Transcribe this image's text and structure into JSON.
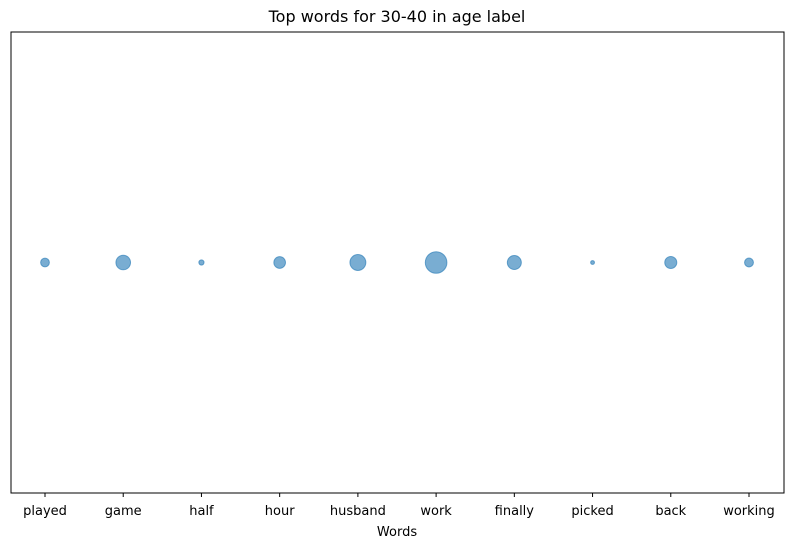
{
  "chart_data": {
    "type": "scatter",
    "title": "Top words for 30-40 in age label",
    "xlabel": "Words",
    "ylabel": "",
    "categories": [
      "played",
      "game",
      "half",
      "hour",
      "husband",
      "work",
      "finally",
      "picked",
      "back",
      "working"
    ],
    "values": [
      31,
      87,
      11,
      55,
      103,
      190,
      80,
      6,
      59,
      32
    ],
    "y_axis_shown": false,
    "grid": false,
    "marker_color": "#1f77b4",
    "marker_alpha": 0.6
  }
}
